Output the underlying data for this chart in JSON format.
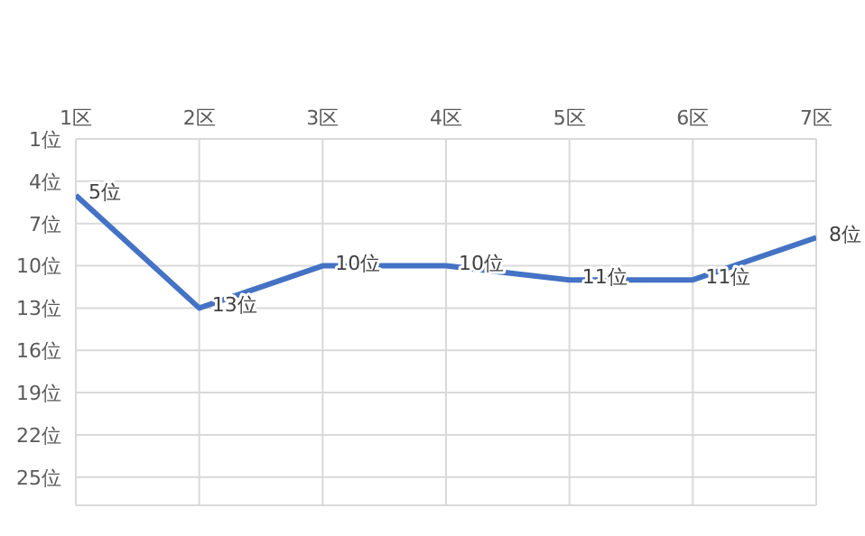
{
  "chart_data": {
    "type": "line",
    "categories": [
      "1区",
      "2区",
      "3区",
      "4区",
      "5区",
      "6区",
      "7区"
    ],
    "series": [
      {
        "color": "#4472c4",
        "values": [
          5,
          13,
          10,
          10,
          11,
          11,
          8
        ],
        "value_labels": [
          "5位",
          "13位",
          "10位",
          "10位",
          "11位",
          "11位",
          "8位"
        ]
      }
    ],
    "ylim": [
      27,
      1
    ],
    "yticks": [
      {
        "value": 1,
        "label": "1位"
      },
      {
        "value": 4,
        "label": "4位"
      },
      {
        "value": 7,
        "label": "7位"
      },
      {
        "value": 10,
        "label": "10位"
      },
      {
        "value": 13,
        "label": "13位"
      },
      {
        "value": 16,
        "label": "16位"
      },
      {
        "value": 19,
        "label": "19位"
      },
      {
        "value": 22,
        "label": "22位"
      },
      {
        "value": 25,
        "label": "25位"
      }
    ],
    "grid": true,
    "legend": false,
    "marker": "none",
    "line_style": "solid"
  }
}
